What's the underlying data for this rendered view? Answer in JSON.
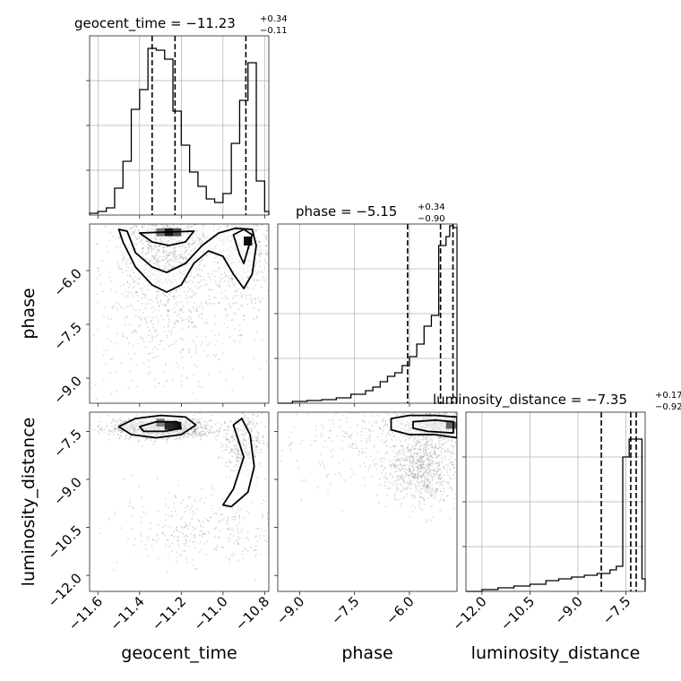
{
  "figure": {
    "type": "corner_plot",
    "parameters": [
      "geocent_time",
      "phase",
      "luminosity_distance"
    ]
  },
  "chart_data": [
    {
      "id": "geocent_time_hist",
      "type": "histogram",
      "title_main": "geocent_time = −11.23",
      "title_sup": "+0.34",
      "title_sub": "−0.11",
      "xlim": [
        -11.64,
        -10.78
      ],
      "ylim": [
        0,
        1
      ],
      "bin_edges": [
        -11.64,
        -11.6,
        -11.56,
        -11.52,
        -11.48,
        -11.44,
        -11.4,
        -11.36,
        -11.32,
        -11.28,
        -11.24,
        -11.2,
        -11.16,
        -11.12,
        -11.08,
        -11.04,
        -11.0,
        -10.96,
        -10.92,
        -10.88,
        -10.84,
        -10.8,
        -10.78
      ],
      "counts": [
        0.01,
        0.02,
        0.04,
        0.15,
        0.3,
        0.59,
        0.7,
        0.93,
        0.92,
        0.87,
        0.58,
        0.39,
        0.24,
        0.16,
        0.09,
        0.07,
        0.12,
        0.4,
        0.64,
        0.85,
        0.19,
        0.02
      ],
      "quantiles": [
        -11.34,
        -11.23,
        -10.89
      ],
      "x_ticks": [
        -11.6,
        -11.4,
        -11.2,
        -11.0,
        -10.8
      ],
      "y_ticks": [
        0.25,
        0.5,
        0.75
      ]
    },
    {
      "id": "phase_hist",
      "type": "histogram",
      "title_main": "phase = −5.15",
      "title_sup": "+0.34",
      "title_sub": "−0.90",
      "xlim": [
        -9.6,
        -4.7
      ],
      "ylim": [
        0,
        1
      ],
      "bin_edges": [
        -9.6,
        -9.2,
        -8.8,
        -8.4,
        -8.0,
        -7.6,
        -7.2,
        -7.0,
        -6.8,
        -6.6,
        -6.4,
        -6.2,
        -6.0,
        -5.8,
        -5.6,
        -5.4,
        -5.2,
        -5.0,
        -4.9,
        -4.8,
        -4.7
      ],
      "counts": [
        0.0,
        0.01,
        0.015,
        0.02,
        0.03,
        0.05,
        0.07,
        0.09,
        0.12,
        0.15,
        0.17,
        0.21,
        0.26,
        0.33,
        0.43,
        0.49,
        0.88,
        0.93,
        0.99,
        0.98
      ],
      "quantiles": [
        -6.05,
        -5.15,
        -4.81
      ],
      "x_ticks": [
        -9.0,
        -7.5,
        -6.0
      ],
      "y_ticks": [
        0.25,
        0.5,
        0.75
      ]
    },
    {
      "id": "luminosity_distance_hist",
      "type": "histogram",
      "title_main": "luminosity_distance = −7.35",
      "title_sup": "+0.17",
      "title_sub": "−0.92",
      "xlim": [
        -12.5,
        -6.9
      ],
      "ylim": [
        0,
        1
      ],
      "bin_edges": [
        -12.5,
        -12.0,
        -11.5,
        -11.0,
        -10.5,
        -10.0,
        -9.6,
        -9.2,
        -8.8,
        -8.4,
        -8.0,
        -7.8,
        -7.6,
        -7.4,
        -7.2,
        -7.0,
        -6.9
      ],
      "counts": [
        0.0,
        0.01,
        0.02,
        0.03,
        0.04,
        0.06,
        0.07,
        0.08,
        0.09,
        0.1,
        0.12,
        0.14,
        0.75,
        0.85,
        0.85,
        0.07
      ],
      "quantiles": [
        -8.27,
        -7.35,
        -7.18
      ],
      "x_ticks": [
        -12.0,
        -10.5,
        -9.0,
        -7.5
      ],
      "y_ticks": [
        0.25,
        0.5,
        0.75
      ]
    },
    {
      "id": "phase_vs_geocent_time",
      "type": "scatter_density",
      "x_param": "geocent_time",
      "y_param": "phase",
      "xlim": [
        -11.64,
        -10.78
      ],
      "ylim": [
        -9.7,
        -4.7
      ],
      "x_ticks": [
        -11.6,
        -11.4,
        -11.2,
        -11.0,
        -10.8
      ],
      "y_ticks": [
        -6.0,
        -7.5,
        -9.0
      ],
      "clusters": [
        {
          "cx": -11.28,
          "cy": -5.2,
          "sx": 0.12,
          "sy": 0.9,
          "n": 1100
        },
        {
          "cx": -10.9,
          "cy": -5.4,
          "sx": 0.08,
          "sy": 0.8,
          "n": 550
        },
        {
          "cx": -11.25,
          "cy": -7.3,
          "sx": 0.2,
          "sy": 1.0,
          "n": 500
        }
      ],
      "contours": [
        [
          [
            -11.46,
            -4.9
          ],
          [
            -11.42,
            -5.5
          ],
          [
            -11.34,
            -5.9
          ],
          [
            -11.27,
            -6.05
          ],
          [
            -11.18,
            -5.8
          ],
          [
            -11.1,
            -5.3
          ],
          [
            -11.02,
            -4.95
          ],
          [
            -10.94,
            -4.82
          ],
          [
            -10.86,
            -4.85
          ],
          [
            -10.84,
            -5.3
          ],
          [
            -10.86,
            -6.1
          ],
          [
            -10.9,
            -6.5
          ],
          [
            -10.95,
            -6.1
          ],
          [
            -11.0,
            -5.6
          ],
          [
            -11.07,
            -5.45
          ],
          [
            -11.14,
            -5.8
          ],
          [
            -11.2,
            -6.4
          ],
          [
            -11.27,
            -6.6
          ],
          [
            -11.34,
            -6.4
          ],
          [
            -11.42,
            -5.9
          ],
          [
            -11.48,
            -5.2
          ],
          [
            -11.5,
            -4.85
          ]
        ],
        [
          [
            -11.4,
            -4.95
          ],
          [
            -11.34,
            -5.2
          ],
          [
            -11.26,
            -5.3
          ],
          [
            -11.18,
            -5.2
          ],
          [
            -11.14,
            -4.9
          ]
        ],
        [
          [
            -10.95,
            -5.0
          ],
          [
            -10.92,
            -5.55
          ],
          [
            -10.9,
            -5.8
          ],
          [
            -10.88,
            -5.4
          ],
          [
            -10.86,
            -5.0
          ],
          [
            -10.9,
            -4.85
          ]
        ]
      ],
      "hot_cells": [
        {
          "x": -11.32,
          "y": -4.82,
          "w": 0.04,
          "h": 0.22,
          "level": 0.55
        },
        {
          "x": -11.28,
          "y": -4.82,
          "w": 0.04,
          "h": 0.22,
          "level": 0.9
        },
        {
          "x": -11.24,
          "y": -4.82,
          "w": 0.04,
          "h": 0.22,
          "level": 0.7
        },
        {
          "x": -10.9,
          "y": -5.05,
          "w": 0.04,
          "h": 0.25,
          "level": 0.95
        }
      ]
    },
    {
      "id": "luminosity_distance_vs_geocent_time",
      "type": "scatter_density",
      "x_param": "geocent_time",
      "y_param": "luminosity_distance",
      "xlim": [
        -11.64,
        -10.78
      ],
      "ylim": [
        -12.5,
        -6.9
      ],
      "x_ticks": [
        -11.6,
        -11.4,
        -11.2,
        -11.0,
        -10.8
      ],
      "y_ticks": [
        -7.5,
        -9.0,
        -10.5,
        -12.0
      ],
      "clusters": [
        {
          "cx": -11.3,
          "cy": -7.4,
          "sx": 0.12,
          "sy": 0.15,
          "n": 1300
        },
        {
          "cx": -10.9,
          "cy": -7.9,
          "sx": 0.05,
          "sy": 0.5,
          "n": 350
        },
        {
          "cx": -11.1,
          "cy": -10.6,
          "sx": 0.2,
          "sy": 0.6,
          "n": 350
        }
      ],
      "contours": [
        [
          [
            -11.5,
            -7.35
          ],
          [
            -11.42,
            -7.1
          ],
          [
            -11.3,
            -7.0
          ],
          [
            -11.18,
            -7.05
          ],
          [
            -11.13,
            -7.3
          ],
          [
            -11.2,
            -7.6
          ],
          [
            -11.32,
            -7.7
          ],
          [
            -11.44,
            -7.6
          ]
        ],
        [
          [
            -11.4,
            -7.35
          ],
          [
            -11.32,
            -7.2
          ],
          [
            -11.22,
            -7.2
          ],
          [
            -11.2,
            -7.4
          ],
          [
            -11.28,
            -7.5
          ],
          [
            -11.38,
            -7.5
          ]
        ],
        [
          [
            -10.95,
            -7.3
          ],
          [
            -10.9,
            -8.3
          ],
          [
            -10.95,
            -9.3
          ],
          [
            -11.0,
            -9.8
          ],
          [
            -10.96,
            -9.85
          ],
          [
            -10.88,
            -9.4
          ],
          [
            -10.85,
            -8.6
          ],
          [
            -10.87,
            -7.6
          ],
          [
            -10.91,
            -7.1
          ]
        ]
      ],
      "hot_cells": [
        {
          "x": -11.32,
          "y": -7.1,
          "w": 0.04,
          "h": 0.25,
          "level": 0.5
        },
        {
          "x": -11.28,
          "y": -7.2,
          "w": 0.04,
          "h": 0.25,
          "level": 0.85
        },
        {
          "x": -11.24,
          "y": -7.2,
          "w": 0.04,
          "h": 0.25,
          "level": 0.9
        }
      ]
    },
    {
      "id": "luminosity_distance_vs_phase",
      "type": "scatter_density",
      "x_param": "phase",
      "y_param": "luminosity_distance",
      "xlim": [
        -9.6,
        -4.7
      ],
      "ylim": [
        -12.5,
        -6.9
      ],
      "x_ticks": [
        -9.0,
        -7.5,
        -6.0
      ],
      "y_ticks": [
        -7.5,
        -9.0,
        -10.5,
        -12.0
      ],
      "clusters": [
        {
          "cx": -5.3,
          "cy": -7.3,
          "sx": 0.5,
          "sy": 0.2,
          "n": 900
        },
        {
          "cx": -5.6,
          "cy": -8.6,
          "sx": 0.5,
          "sy": 0.6,
          "n": 800
        },
        {
          "cx": -7.0,
          "cy": -7.6,
          "sx": 1.2,
          "sy": 0.9,
          "n": 350
        }
      ],
      "contours": [
        [
          [
            -6.5,
            -7.1
          ],
          [
            -6.0,
            -7.0
          ],
          [
            -5.3,
            -7.0
          ],
          [
            -4.7,
            -7.05
          ],
          [
            -4.7,
            -7.7
          ],
          [
            -5.3,
            -7.6
          ],
          [
            -6.0,
            -7.6
          ],
          [
            -6.5,
            -7.45
          ]
        ],
        [
          [
            -5.9,
            -7.2
          ],
          [
            -5.3,
            -7.15
          ],
          [
            -4.8,
            -7.2
          ],
          [
            -4.8,
            -7.55
          ],
          [
            -5.5,
            -7.5
          ],
          [
            -5.9,
            -7.4
          ]
        ]
      ],
      "hot_cells": [
        {
          "x": -5.0,
          "y": -7.2,
          "w": 0.3,
          "h": 0.22,
          "level": 0.6
        },
        {
          "x": -4.72,
          "y": -7.25,
          "w": 0.02,
          "h": 0.3,
          "level": 0.9
        }
      ]
    }
  ],
  "axis_labels": {
    "row1_y": "phase",
    "row2_y": "luminosity_distance",
    "col0_x": "geocent_time",
    "col1_x": "phase",
    "col2_x": "luminosity_distance"
  }
}
